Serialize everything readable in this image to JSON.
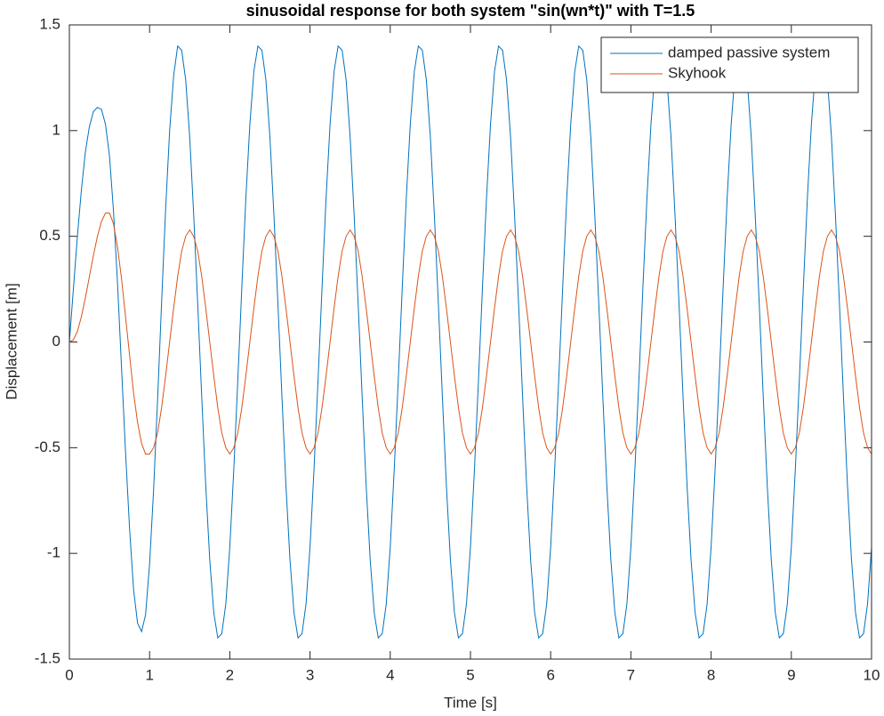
{
  "chart_data": {
    "type": "line",
    "title": "sinusoidal response for both system \"sin(wn*t)\" with T=1.5",
    "x_label": "Time [s]",
    "y_label": "Displacement [m]",
    "xlim": [
      0,
      10
    ],
    "ylim": [
      -1.5,
      1.5
    ],
    "xticks": [
      0,
      1,
      2,
      3,
      4,
      5,
      6,
      7,
      8,
      9,
      10
    ],
    "yticks": [
      -1.5,
      -1,
      -0.5,
      0,
      0.5,
      1,
      1.5
    ],
    "grid": false,
    "legend": "northeast",
    "x": [
      0,
      0.05,
      0.1,
      0.15,
      0.2,
      0.25,
      0.3,
      0.35,
      0.4,
      0.45,
      0.5,
      0.55,
      0.6,
      0.65,
      0.7,
      0.75,
      0.8,
      0.85,
      0.9,
      0.95,
      1,
      1.05,
      1.1,
      1.15,
      1.2,
      1.25,
      1.3,
      1.35,
      1.4,
      1.45,
      1.5,
      1.55,
      1.6,
      1.65,
      1.7,
      1.75,
      1.8,
      1.85,
      1.9,
      1.95,
      2,
      2.05,
      2.1,
      2.15,
      2.2,
      2.25,
      2.3,
      2.35,
      2.4,
      2.45,
      2.5,
      2.55,
      2.6,
      2.65,
      2.7,
      2.75,
      2.8,
      2.85,
      2.9,
      2.95,
      3,
      3.05,
      3.1,
      3.15,
      3.2,
      3.25,
      3.3,
      3.35,
      3.4,
      3.45,
      3.5,
      3.55,
      3.6,
      3.65,
      3.7,
      3.75,
      3.8,
      3.85,
      3.9,
      3.95,
      4,
      4.05,
      4.1,
      4.15,
      4.2,
      4.25,
      4.3,
      4.35,
      4.4,
      4.45,
      4.5,
      4.55,
      4.6,
      4.65,
      4.7,
      4.75,
      4.8,
      4.85,
      4.9,
      4.95,
      5,
      5.05,
      5.1,
      5.15,
      5.2,
      5.25,
      5.3,
      5.35,
      5.4,
      5.45,
      5.5,
      5.55,
      5.6,
      5.65,
      5.7,
      5.75,
      5.8,
      5.85,
      5.9,
      5.95,
      6,
      6.05,
      6.1,
      6.15,
      6.2,
      6.25,
      6.3,
      6.35,
      6.4,
      6.45,
      6.5,
      6.55,
      6.6,
      6.65,
      6.7,
      6.75,
      6.8,
      6.85,
      6.9,
      6.95,
      7,
      7.05,
      7.1,
      7.15,
      7.2,
      7.25,
      7.3,
      7.35,
      7.4,
      7.45,
      7.5,
      7.55,
      7.6,
      7.65,
      7.7,
      7.75,
      7.8,
      7.85,
      7.9,
      7.95,
      8,
      8.05,
      8.1,
      8.15,
      8.2,
      8.25,
      8.3,
      8.35,
      8.4,
      8.45,
      8.5,
      8.55,
      8.6,
      8.65,
      8.7,
      8.75,
      8.8,
      8.85,
      8.9,
      8.95,
      9,
      9.05,
      9.1,
      9.15,
      9.2,
      9.25,
      9.3,
      9.35,
      9.4,
      9.45,
      9.5,
      9.55,
      9.6,
      9.65,
      9.7,
      9.75,
      9.8,
      9.85,
      9.9,
      9.95,
      10
    ],
    "series": [
      {
        "name": "damped passive system",
        "color": "#0072BD",
        "values": [
          0,
          0.25,
          0.5,
          0.72,
          0.9,
          1.02,
          1.09,
          1.11,
          1.1,
          1.03,
          0.88,
          0.62,
          0.28,
          -0.12,
          -0.52,
          -0.88,
          -1.17,
          -1.33,
          -1.37,
          -1.29,
          -1.05,
          -0.7,
          -0.27,
          0.19,
          0.63,
          1,
          1.26,
          1.4,
          1.38,
          1.24,
          0.97,
          0.6,
          0.18,
          -0.26,
          -0.68,
          -1.03,
          -1.28,
          -1.4,
          -1.38,
          -1.24,
          -0.97,
          -0.6,
          -0.18,
          0.26,
          0.68,
          1.03,
          1.28,
          1.4,
          1.38,
          1.24,
          0.97,
          0.6,
          0.18,
          -0.26,
          -0.68,
          -1.03,
          -1.28,
          -1.4,
          -1.38,
          -1.24,
          -0.97,
          -0.6,
          -0.18,
          0.26,
          0.68,
          1.03,
          1.28,
          1.4,
          1.38,
          1.24,
          0.97,
          0.6,
          0.18,
          -0.26,
          -0.68,
          -1.03,
          -1.28,
          -1.4,
          -1.38,
          -1.24,
          -0.97,
          -0.6,
          -0.18,
          0.26,
          0.68,
          1.03,
          1.28,
          1.4,
          1.38,
          1.24,
          0.97,
          0.6,
          0.18,
          -0.26,
          -0.68,
          -1.03,
          -1.28,
          -1.4,
          -1.38,
          -1.24,
          -0.97,
          -0.6,
          -0.18,
          0.26,
          0.68,
          1.03,
          1.28,
          1.4,
          1.38,
          1.24,
          0.97,
          0.6,
          0.18,
          -0.26,
          -0.68,
          -1.03,
          -1.28,
          -1.4,
          -1.38,
          -1.24,
          -0.97,
          -0.6,
          -0.18,
          0.26,
          0.68,
          1.03,
          1.28,
          1.4,
          1.38,
          1.24,
          0.97,
          0.6,
          0.18,
          -0.26,
          -0.68,
          -1.03,
          -1.28,
          -1.4,
          -1.38,
          -1.24,
          -0.97,
          -0.6,
          -0.18,
          0.26,
          0.68,
          1.03,
          1.28,
          1.4,
          1.38,
          1.24,
          0.97,
          0.6,
          0.18,
          -0.26,
          -0.68,
          -1.03,
          -1.28,
          -1.4,
          -1.38,
          -1.24,
          -0.97,
          -0.6,
          -0.18,
          0.26,
          0.68,
          1.03,
          1.28,
          1.4,
          1.38,
          1.24,
          0.97,
          0.6,
          0.18,
          -0.26,
          -0.68,
          -1.03,
          -1.28,
          -1.4,
          -1.38,
          -1.24,
          -0.97,
          -0.6,
          -0.18,
          0.26,
          0.68,
          1.03,
          1.28,
          1.4,
          1.38,
          1.24,
          0.97,
          0.6,
          0.18,
          -0.26,
          -0.68,
          -1.03,
          -1.28,
          -1.4,
          -1.38,
          -1.24,
          -0.97
        ]
      },
      {
        "name": "Skyhook",
        "color": "#D95319",
        "values": [
          0,
          0.01,
          0.05,
          0.12,
          0.21,
          0.31,
          0.41,
          0.5,
          0.57,
          0.61,
          0.61,
          0.56,
          0.45,
          0.3,
          0.12,
          -0.06,
          -0.24,
          -0.38,
          -0.48,
          -0.53,
          -0.53,
          -0.5,
          -0.43,
          -0.31,
          -0.16,
          0,
          0.16,
          0.31,
          0.43,
          0.5,
          0.53,
          0.5,
          0.43,
          0.31,
          0.16,
          0,
          -0.16,
          -0.31,
          -0.43,
          -0.5,
          -0.53,
          -0.5,
          -0.43,
          -0.31,
          -0.16,
          0,
          0.16,
          0.31,
          0.43,
          0.5,
          0.53,
          0.5,
          0.43,
          0.31,
          0.16,
          0,
          -0.16,
          -0.31,
          -0.43,
          -0.5,
          -0.53,
          -0.5,
          -0.43,
          -0.31,
          -0.16,
          0,
          0.16,
          0.31,
          0.43,
          0.5,
          0.53,
          0.5,
          0.43,
          0.31,
          0.16,
          0,
          -0.16,
          -0.31,
          -0.43,
          -0.5,
          -0.53,
          -0.5,
          -0.43,
          -0.31,
          -0.16,
          0,
          0.16,
          0.31,
          0.43,
          0.5,
          0.53,
          0.5,
          0.43,
          0.31,
          0.16,
          0,
          -0.16,
          -0.31,
          -0.43,
          -0.5,
          -0.53,
          -0.5,
          -0.43,
          -0.31,
          -0.16,
          0,
          0.16,
          0.31,
          0.43,
          0.5,
          0.53,
          0.5,
          0.43,
          0.31,
          0.16,
          0,
          -0.16,
          -0.31,
          -0.43,
          -0.5,
          -0.53,
          -0.5,
          -0.43,
          -0.31,
          -0.16,
          0,
          0.16,
          0.31,
          0.43,
          0.5,
          0.53,
          0.5,
          0.43,
          0.31,
          0.16,
          0,
          -0.16,
          -0.31,
          -0.43,
          -0.5,
          -0.53,
          -0.5,
          -0.43,
          -0.31,
          -0.16,
          0,
          0.16,
          0.31,
          0.43,
          0.5,
          0.53,
          0.5,
          0.43,
          0.31,
          0.16,
          0,
          -0.16,
          -0.31,
          -0.43,
          -0.5,
          -0.53,
          -0.5,
          -0.43,
          -0.31,
          -0.16,
          0,
          0.16,
          0.31,
          0.43,
          0.5,
          0.53,
          0.5,
          0.43,
          0.31,
          0.16,
          0,
          -0.16,
          -0.31,
          -0.43,
          -0.5,
          -0.53,
          -0.5,
          -0.43,
          -0.31,
          -0.16,
          0,
          0.16,
          0.31,
          0.43,
          0.5,
          0.53,
          0.5,
          0.43,
          0.31,
          0.16,
          0,
          -0.16,
          -0.31,
          -0.43,
          -0.5,
          -0.53
        ]
      }
    ]
  }
}
